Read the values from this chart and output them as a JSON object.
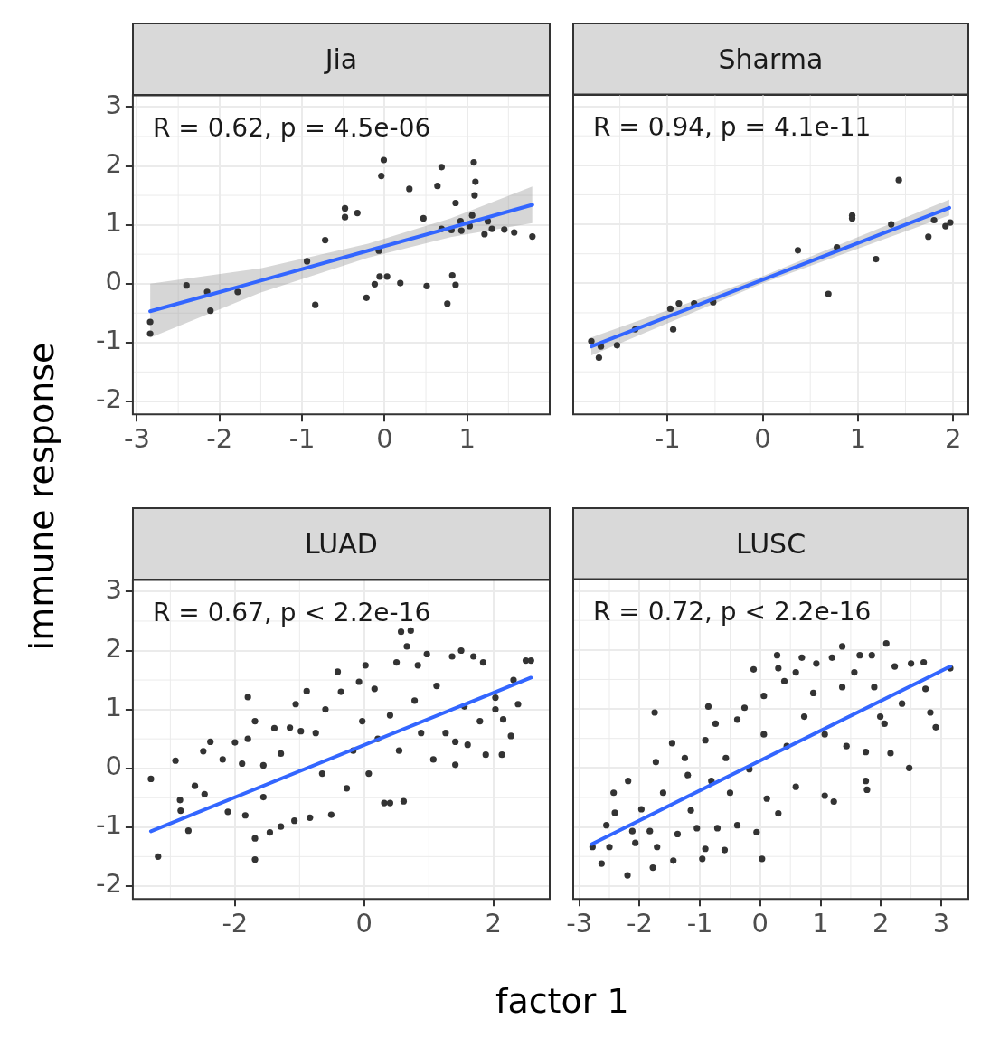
{
  "chart_data": [
    {
      "type": "scatter",
      "title": "Jia",
      "ylabel": "immune response",
      "annotations": [
        "R = 0.62, p = 4.5e-06"
      ],
      "xlim": [
        -3.05,
        2.0
      ],
      "xticks": [
        -3,
        -2,
        -1,
        0,
        1
      ],
      "ylim": [
        -2.22,
        3.2
      ],
      "yticks": [
        -2,
        -1,
        0,
        1,
        2,
        3
      ],
      "grid": true,
      "series": [
        {
          "type": "scatter",
          "marker": "circle",
          "color": "#333333",
          "x": [
            -2.84,
            -2.84,
            -2.4,
            -2.15,
            -2.11,
            -1.78,
            -0.94,
            -0.84,
            -0.72,
            -0.48,
            -0.48,
            -0.33,
            -0.22,
            -0.12,
            -0.07,
            -0.04,
            -0.01,
            -0.06,
            0.03,
            0.19,
            0.3,
            0.47,
            0.51,
            0.64,
            0.69,
            0.69,
            0.76,
            0.82,
            0.86,
            0.81,
            0.86,
            0.92,
            0.93,
            1.03,
            1.06,
            1.08,
            1.1,
            1.09,
            1.21,
            1.25,
            1.3,
            1.45,
            1.57,
            1.79
          ],
          "values": [
            -0.85,
            -0.65,
            -0.03,
            -0.14,
            -0.46,
            -0.14,
            0.38,
            -0.36,
            0.74,
            1.28,
            1.13,
            1.2,
            -0.24,
            -0.01,
            0.56,
            1.83,
            2.1,
            0.12,
            0.12,
            0.01,
            1.61,
            1.11,
            -0.04,
            1.66,
            1.98,
            0.93,
            -0.34,
            0.14,
            -0.02,
            0.91,
            1.37,
            1.06,
            0.9,
            0.98,
            1.16,
            2.06,
            1.73,
            1.5,
            0.84,
            1.06,
            0.93,
            0.92,
            0.87,
            0.8
          ]
        },
        {
          "type": "line",
          "color": "#3366ff",
          "x": [
            -2.84,
            -1.5,
            -0.2,
            0.8,
            1.79
          ],
          "values": [
            -0.47,
            0.05,
            0.56,
            0.95,
            1.34
          ],
          "lower": [
            -0.92,
            -0.15,
            0.44,
            0.79,
            1.03
          ],
          "upper": [
            0.0,
            0.26,
            0.68,
            1.11,
            1.65
          ]
        }
      ]
    },
    {
      "type": "scatter",
      "title": "Sharma",
      "annotations": [
        "R = 0.94, p = 4.1e-11"
      ],
      "xlim": [
        -1.99,
        2.16
      ],
      "xticks": [
        -1,
        0,
        1,
        2
      ],
      "ylim": [
        -2.22,
        3.2
      ],
      "yticks": [
        -2,
        -1,
        0,
        1,
        2,
        3
      ],
      "tick_labels": "x",
      "grid": true,
      "series": [
        {
          "type": "scatter",
          "marker": "circle",
          "color": "#333333",
          "x": [
            -1.8,
            -1.72,
            -1.7,
            -1.53,
            -1.34,
            -0.97,
            -0.94,
            -0.88,
            -0.72,
            -0.52,
            0.37,
            0.69,
            0.78,
            0.94,
            0.94,
            1.19,
            1.35,
            1.43,
            1.74,
            1.8,
            1.92,
            1.97
          ],
          "values": [
            -0.98,
            -1.26,
            -1.07,
            -1.05,
            -0.78,
            -0.43,
            -0.78,
            -0.34,
            -0.34,
            -0.32,
            0.56,
            -0.18,
            0.61,
            1.15,
            1.1,
            0.41,
            1.0,
            1.75,
            0.79,
            1.07,
            0.97,
            1.03
          ]
        },
        {
          "type": "line",
          "color": "#3366ff",
          "x": [
            -1.8,
            0.0,
            1.96
          ],
          "values": [
            -1.07,
            0.06,
            1.28
          ],
          "lower": [
            -1.22,
            0.0,
            1.15
          ],
          "upper": [
            -0.92,
            0.12,
            1.42
          ]
        }
      ]
    },
    {
      "type": "scatter",
      "title": "LUAD",
      "xlabel": "factor 1",
      "annotations": [
        "R = 0.67, p < 2.2e-16"
      ],
      "xlim": [
        -3.58,
        2.87
      ],
      "xticks": [
        -2,
        0,
        2
      ],
      "ylim": [
        -2.22,
        3.2
      ],
      "yticks": [
        -2,
        -1,
        0,
        1,
        2,
        3
      ],
      "grid": true,
      "series": [
        {
          "type": "scatter",
          "marker": "circle",
          "color": "#333333",
          "x": [
            -3.3,
            -3.19,
            -2.92,
            -2.85,
            -2.84,
            -2.72,
            -2.62,
            -2.49,
            -2.38,
            -2.47,
            -2.19,
            -2.11,
            -2.0,
            -1.89,
            -1.8,
            -1.8,
            -1.69,
            -1.69,
            -1.69,
            -1.84,
            -1.56,
            -1.56,
            -1.46,
            -1.39,
            -1.29,
            -1.29,
            -1.15,
            -1.06,
            -1.08,
            -0.98,
            -0.89,
            -0.84,
            -0.75,
            -0.65,
            -0.6,
            -0.51,
            -0.41,
            -0.36,
            -0.27,
            -0.17,
            -0.08,
            -0.03,
            0.02,
            0.07,
            0.16,
            0.21,
            0.31,
            0.4,
            0.4,
            0.5,
            0.57,
            0.61,
            0.66,
            0.54,
            0.78,
            0.83,
            0.88,
            0.97,
            1.07,
            1.12,
            1.26,
            1.36,
            1.41,
            1.41,
            1.5,
            1.55,
            1.6,
            1.69,
            1.79,
            1.84,
            1.88,
            2.03,
            2.03,
            2.13,
            2.15,
            2.27,
            2.31,
            2.38,
            2.5,
            2.58,
            0.72
          ],
          "values": [
            -0.18,
            -1.5,
            0.13,
            -0.54,
            -0.72,
            -1.06,
            -0.3,
            0.29,
            0.45,
            -0.44,
            0.15,
            -0.74,
            0.44,
            0.08,
            1.21,
            0.5,
            0.8,
            -1.19,
            -1.55,
            -0.8,
            0.05,
            -0.49,
            -1.09,
            0.68,
            -0.99,
            0.25,
            0.69,
            1.09,
            -0.89,
            0.63,
            1.31,
            -0.84,
            0.6,
            -0.09,
            1.0,
            -0.79,
            1.64,
            1.3,
            -0.34,
            0.3,
            1.47,
            0.8,
            1.75,
            -0.09,
            1.35,
            0.5,
            -0.59,
            -0.59,
            0.9,
            1.8,
            2.32,
            -0.56,
            2.07,
            0.3,
            1.15,
            1.75,
            0.6,
            1.94,
            0.15,
            1.4,
            0.6,
            1.9,
            0.45,
            0.06,
            2.0,
            1.05,
            0.4,
            1.9,
            0.8,
            1.8,
            0.23,
            1.2,
            1.0,
            0.23,
            0.83,
            0.55,
            1.5,
            1.09,
            1.83,
            1.83,
            2.34
          ]
        },
        {
          "type": "line",
          "color": "#3366ff",
          "x": [
            -3.3,
            2.58
          ],
          "values": [
            -1.07,
            1.54
          ]
        }
      ]
    },
    {
      "type": "scatter",
      "title": "LUSC",
      "annotations": [
        "R = 0.72, p < 2.2e-16"
      ],
      "xlim": [
        -3.1,
        3.45
      ],
      "xticks": [
        -3,
        -2,
        -1,
        0,
        1,
        2,
        3
      ],
      "ylim": [
        -2.22,
        3.2
      ],
      "yticks": [
        -2,
        -1,
        0,
        1,
        2,
        3
      ],
      "tick_labels": "x",
      "grid": true,
      "series": [
        {
          "type": "scatter",
          "marker": "circle",
          "color": "#333333",
          "x": [
            -2.78,
            -2.63,
            -2.55,
            -2.43,
            -2.5,
            -2.2,
            -2.19,
            -2.41,
            -2.12,
            -2.07,
            -1.97,
            -1.78,
            -1.75,
            -1.83,
            -1.73,
            -1.71,
            -1.61,
            -1.46,
            -1.44,
            -1.37,
            -1.25,
            -1.2,
            -1.15,
            -1.05,
            -0.96,
            -0.91,
            -0.86,
            -0.91,
            -0.81,
            -0.74,
            -0.71,
            -0.59,
            -0.57,
            -0.5,
            -0.38,
            -0.38,
            -0.26,
            -0.18,
            -0.11,
            -0.06,
            0.03,
            0.06,
            0.06,
            0.11,
            0.28,
            0.3,
            0.3,
            0.4,
            0.44,
            0.59,
            0.59,
            0.69,
            0.73,
            0.88,
            0.93,
            1.07,
            1.07,
            1.22,
            1.19,
            1.36,
            1.36,
            1.43,
            1.56,
            1.65,
            1.75,
            1.77,
            1.75,
            1.85,
            1.89,
            1.99,
            2.09,
            2.06,
            2.16,
            2.23,
            2.35,
            2.47,
            2.5,
            2.71,
            2.74,
            2.82,
            2.91,
            3.15
          ],
          "values": [
            -1.34,
            -1.62,
            -0.97,
            -0.42,
            -1.34,
            -1.82,
            -0.22,
            -0.76,
            -1.07,
            -1.27,
            -0.7,
            -1.69,
            0.94,
            -1.07,
            0.1,
            -1.34,
            -0.42,
            0.42,
            -1.57,
            -1.12,
            0.17,
            -0.12,
            -0.72,
            -1.02,
            -1.54,
            -1.37,
            1.04,
            0.47,
            -0.22,
            0.75,
            -1.02,
            -1.39,
            0.17,
            -0.42,
            -0.97,
            0.82,
            1.02,
            -0.02,
            1.67,
            -1.09,
            -1.54,
            0.57,
            1.22,
            -0.52,
            1.91,
            1.69,
            -0.77,
            1.47,
            0.37,
            1.62,
            -0.32,
            1.87,
            0.87,
            1.27,
            1.77,
            -0.47,
            0.57,
            -0.57,
            1.87,
            1.37,
            2.06,
            0.37,
            1.62,
            1.91,
            -0.22,
            -0.37,
            0.27,
            1.91,
            1.37,
            0.87,
            2.11,
            0.75,
            0.25,
            1.72,
            1.09,
            0.0,
            1.77,
            1.79,
            1.34,
            0.94,
            0.69,
            1.69
          ]
        },
        {
          "type": "line",
          "color": "#3366ff",
          "x": [
            -2.79,
            3.15
          ],
          "values": [
            -1.29,
            1.72
          ]
        }
      ]
    }
  ]
}
